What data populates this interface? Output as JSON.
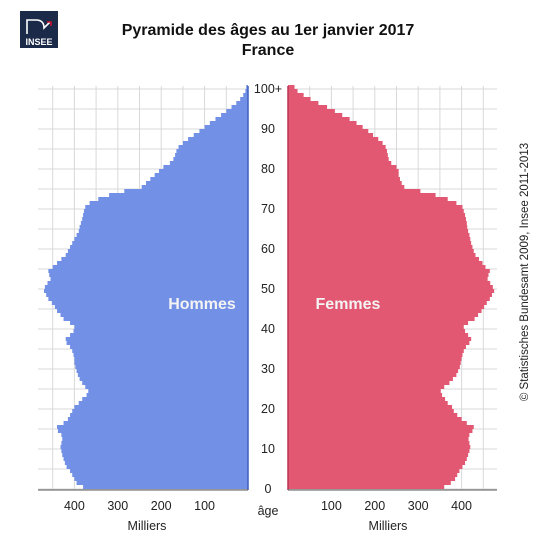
{
  "logo": {
    "text": "INSEE"
  },
  "credit": "© Statistisches Bundesamt 2009, Insee 2011-2013",
  "colors": {
    "men": "#7290e6",
    "women": "#e25771",
    "grid": "#d9d9d9",
    "axis_men": "#3f5ec0",
    "axis_women": "#b83553"
  },
  "chart_data": {
    "type": "bar",
    "orientation": "horizontal",
    "title": "Pyramide des âges au 1er janvier 2017",
    "subtitle": "France",
    "xlabel_left": "Milliers",
    "xlabel_right": "Milliers",
    "ylabel": "âge",
    "xlim": [
      0,
      480
    ],
    "ylim": [
      0,
      100
    ],
    "left_xticks": [
      "400",
      "300",
      "200",
      "100"
    ],
    "right_xticks": [
      "100",
      "200",
      "300",
      "400"
    ],
    "yticks": [
      "0",
      "10",
      "20",
      "30",
      "40",
      "50",
      "60",
      "70",
      "80",
      "90",
      "100+"
    ],
    "grid": true,
    "series": [
      {
        "name": "Hommes",
        "side": "left",
        "values": [
          380,
          395,
          400,
          405,
          410,
          418,
          422,
          425,
          428,
          430,
          432,
          430,
          428,
          430,
          438,
          440,
          425,
          415,
          410,
          405,
          400,
          390,
          382,
          372,
          368,
          375,
          382,
          388,
          392,
          395,
          398,
          400,
          400,
          402,
          405,
          410,
          418,
          420,
          410,
          402,
          400,
          410,
          425,
          432,
          440,
          445,
          452,
          460,
          465,
          470,
          468,
          462,
          455,
          458,
          460,
          450,
          440,
          430,
          420,
          415,
          410,
          405,
          400,
          395,
          390,
          388,
          385,
          382,
          380,
          378,
          375,
          365,
          345,
          320,
          285,
          245,
          235,
          225,
          215,
          205,
          195,
          180,
          172,
          168,
          165,
          160,
          150,
          138,
          125,
          112,
          100,
          88,
          75,
          62,
          50,
          38,
          27,
          18,
          11,
          6,
          4
        ]
      },
      {
        "name": "Femmes",
        "side": "right",
        "values": [
          360,
          375,
          385,
          390,
          395,
          402,
          408,
          412,
          415,
          418,
          420,
          418,
          416,
          418,
          425,
          428,
          412,
          400,
          390,
          382,
          378,
          368,
          362,
          355,
          352,
          360,
          372,
          380,
          388,
          392,
          396,
          398,
          400,
          402,
          405,
          410,
          418,
          422,
          415,
          408,
          405,
          415,
          430,
          438,
          446,
          452,
          458,
          465,
          470,
          475,
          472,
          466,
          460,
          462,
          465,
          455,
          448,
          440,
          432,
          428,
          425,
          422,
          420,
          418,
          415,
          413,
          412,
          410,
          408,
          405,
          402,
          388,
          368,
          340,
          305,
          268,
          262,
          258,
          255,
          255,
          250,
          238,
          232,
          230,
          228,
          225,
          218,
          208,
          196,
          185,
          172,
          158,
          142,
          125,
          108,
          90,
          70,
          52,
          36,
          22,
          15
        ]
      }
    ],
    "annotations": [
      "Hommes",
      "Femmes"
    ]
  }
}
